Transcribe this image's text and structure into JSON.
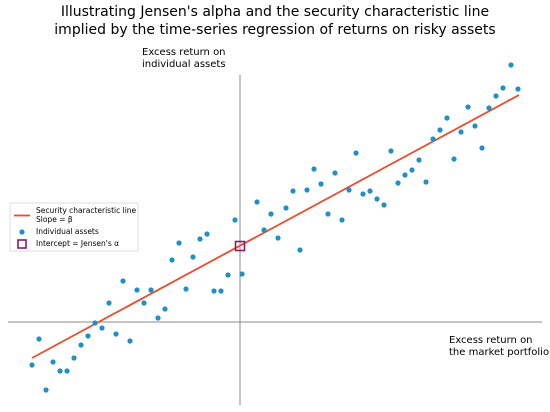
{
  "chart_data": {
    "type": "scatter",
    "title": [
      "Illustrating Jensen's alpha and the security characteristic line",
      "implied by the time-series regression of returns on risky assets"
    ],
    "y_label": [
      "Excess return on",
      "individual assets"
    ],
    "x_label": [
      "Excess return on",
      "the market portfolio"
    ],
    "xlim": [
      -11.6,
      15.1
    ],
    "ylim": [
      -4.15,
      13.1
    ],
    "legend": "left",
    "series": [
      {
        "name": [
          "Security characteristic line",
          "Slope = β"
        ],
        "type": "line",
        "color": "#ee4b2b",
        "x": [
          -10.4,
          13.95
        ],
        "values": [
          -1.8,
          11.35
        ]
      },
      {
        "name": "Individual assets",
        "type": "scatter",
        "color": "#1f8fc8",
        "x": [
          -10.4,
          -10.05,
          -9.7,
          -9.35,
          -9,
          -8.65,
          -8.3,
          -7.95,
          -7.6,
          -7.25,
          -6.9,
          -6.55,
          -6.2,
          -5.85,
          -5.5,
          -5.15,
          -4.8,
          -4.45,
          -4.1,
          -3.75,
          -3.4,
          -3.05,
          -2.7,
          -2.35,
          -2,
          -1.65,
          -1.3,
          -0.95,
          -0.6,
          -0.25,
          0.1,
          0.85,
          1.2,
          1.55,
          1.9,
          2.3,
          2.65,
          3,
          3.35,
          3.7,
          4.05,
          4.4,
          4.75,
          5.1,
          5.45,
          5.8,
          6.15,
          6.5,
          6.85,
          7.2,
          7.55,
          7.9,
          8.25,
          8.6,
          8.95,
          9.3,
          9.65,
          10,
          10.35,
          10.7,
          11.05,
          11.4,
          11.75,
          12.1,
          12.45,
          12.8,
          13.15,
          13.55,
          13.9
        ],
        "values": [
          -2.15,
          -0.85,
          -3.4,
          -2,
          -2.45,
          -2.45,
          -1.8,
          -1.15,
          -0.7,
          -0.05,
          -0.3,
          0.95,
          -0.6,
          2.05,
          -0.95,
          1.6,
          0.95,
          1.6,
          0.2,
          0.65,
          3.1,
          3.95,
          1.65,
          3.25,
          4.15,
          4.4,
          1.55,
          1.55,
          2.35,
          5.1,
          2.4,
          6,
          4.6,
          5.4,
          4.2,
          5.7,
          6.55,
          3.6,
          6.6,
          7.65,
          6.9,
          5.4,
          7.45,
          5.1,
          6.6,
          8.45,
          6.4,
          6.55,
          6.15,
          5.85,
          8.55,
          6.95,
          7.35,
          7.6,
          8.1,
          7,
          9.15,
          9.6,
          10.2,
          8.15,
          9.5,
          10.75,
          9.8,
          8.7,
          10.7,
          11.3,
          11.7,
          12.85,
          11.65
        ]
      },
      {
        "name": "Intercept = Jensen's α",
        "type": "marker",
        "color": "#8b1a6b",
        "x": [
          0
        ],
        "values": [
          3.8
        ]
      }
    ]
  }
}
